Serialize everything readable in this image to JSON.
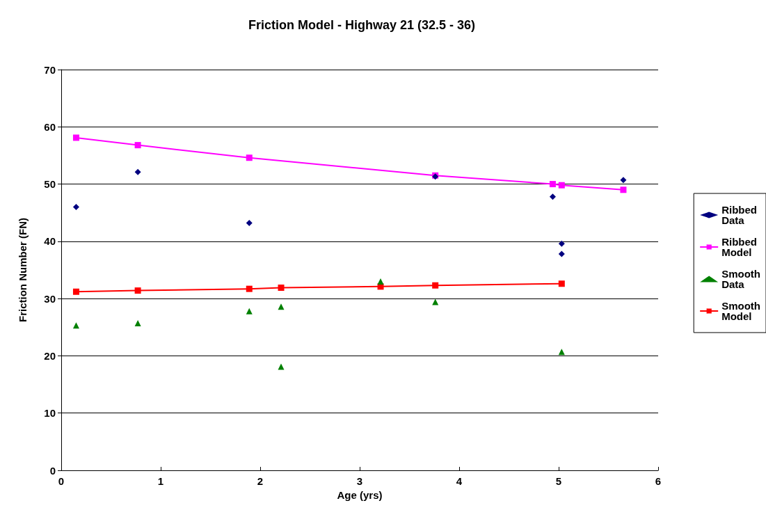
{
  "chart_data": {
    "type": "scatter",
    "title": "Friction Model - Highway 21 (32.5 - 36)",
    "xlabel": "Age (yrs)",
    "ylabel": "Friction Number (FN)",
    "xlim": [
      0,
      6
    ],
    "xticks": [
      0,
      1,
      2,
      3,
      4,
      5,
      6
    ],
    "ylim": [
      0,
      70
    ],
    "yticks": [
      0,
      10,
      20,
      30,
      40,
      50,
      60,
      70
    ],
    "grid": "y",
    "legend": "right",
    "series": [
      {
        "name": "Ribbed Data",
        "marker": "diamond",
        "color": "#000080",
        "x": [
          0.15,
          0.77,
          1.89,
          3.76,
          4.94,
          5.03,
          5.03,
          5.65
        ],
        "values": [
          46.0,
          52.1,
          43.2,
          51.3,
          47.8,
          39.6,
          37.8,
          50.7
        ]
      },
      {
        "name": "Ribbed Model",
        "type": "line",
        "marker": "square",
        "line_style": "solid",
        "color": "#ff00ff",
        "x": [
          0.15,
          0.77,
          1.89,
          3.76,
          4.94,
          5.03,
          5.65
        ],
        "values": [
          58.1,
          56.8,
          54.6,
          51.5,
          50.0,
          49.8,
          49.0
        ]
      },
      {
        "name": "Smooth Data",
        "marker": "triangle",
        "color": "#008000",
        "x": [
          0.15,
          0.77,
          1.89,
          2.21,
          2.21,
          3.21,
          3.76,
          5.03
        ],
        "values": [
          25.3,
          25.7,
          27.8,
          28.6,
          18.1,
          33.0,
          29.4,
          20.7
        ]
      },
      {
        "name": "Smooth Model",
        "type": "line",
        "marker": "square",
        "line_style": "solid",
        "color": "#ff0000",
        "x": [
          0.15,
          0.77,
          1.89,
          2.21,
          3.21,
          3.76,
          5.03
        ],
        "values": [
          31.2,
          31.4,
          31.7,
          31.9,
          32.1,
          32.3,
          32.6
        ]
      }
    ]
  }
}
